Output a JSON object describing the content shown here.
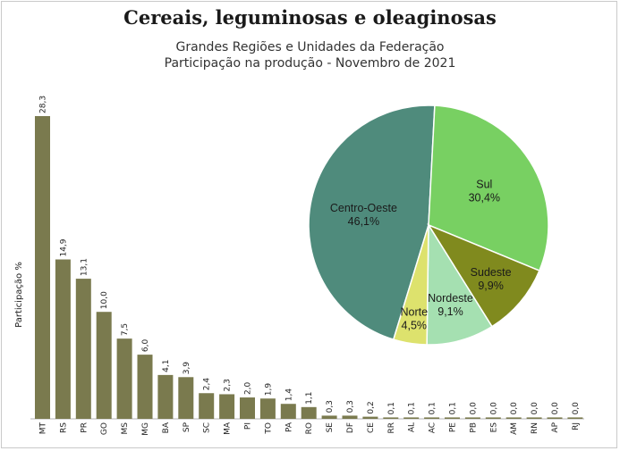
{
  "title": "Cereais, leguminosas e oleaginosas",
  "subtitle_line1": "Grandes Regiões e Unidades da Federação",
  "subtitle_line2": "Participação na produção - Novembro de 2021",
  "chart_data": [
    {
      "type": "bar",
      "ylabel": "Participação %",
      "categories": [
        "MT",
        "RS",
        "PR",
        "GO",
        "MS",
        "MG",
        "BA",
        "SP",
        "SC",
        "MA",
        "PI",
        "TO",
        "PA",
        "RO",
        "SE",
        "DF",
        "CE",
        "RR",
        "AL",
        "AC",
        "PE",
        "PB",
        "ES",
        "AM",
        "RN",
        "AP",
        "RJ"
      ],
      "values": [
        28.3,
        14.9,
        13.1,
        10.0,
        7.5,
        6.0,
        4.1,
        3.9,
        2.4,
        2.3,
        2.0,
        1.9,
        1.4,
        1.1,
        0.3,
        0.3,
        0.2,
        0.1,
        0.1,
        0.1,
        0.1,
        0.0,
        0.0,
        0.0,
        0.0,
        0.0,
        0.0
      ],
      "value_labels": [
        "28,3",
        "14,9",
        "13,1",
        "10,0",
        "7,5",
        "6,0",
        "4,1",
        "3,9",
        "2,4",
        "2,3",
        "2,0",
        "1,9",
        "1,4",
        "1,1",
        "0,3",
        "0,3",
        "0,2",
        "0,1",
        "0,1",
        "0,1",
        "0,1",
        "0,0",
        "0,0",
        "0,0",
        "0,0",
        "0,0",
        "0,0"
      ],
      "ylim": [
        0,
        28.3
      ],
      "grid": false,
      "color": "#7a7a4e"
    },
    {
      "type": "pie",
      "slices": [
        {
          "label": "Centro-Oeste",
          "value": 46.1,
          "value_label": "46,1%",
          "color": "#4f8b7c"
        },
        {
          "label": "Sul",
          "value": 30.4,
          "value_label": "30,4%",
          "color": "#78d062"
        },
        {
          "label": "Sudeste",
          "value": 9.9,
          "value_label": "9,9%",
          "color": "#808a1e"
        },
        {
          "label": "Nordeste",
          "value": 9.1,
          "value_label": "9,1%",
          "color": "#a5e0b1"
        },
        {
          "label": "Norte",
          "value": 4.5,
          "value_label": "4,5%",
          "color": "#dde26d"
        }
      ]
    }
  ]
}
